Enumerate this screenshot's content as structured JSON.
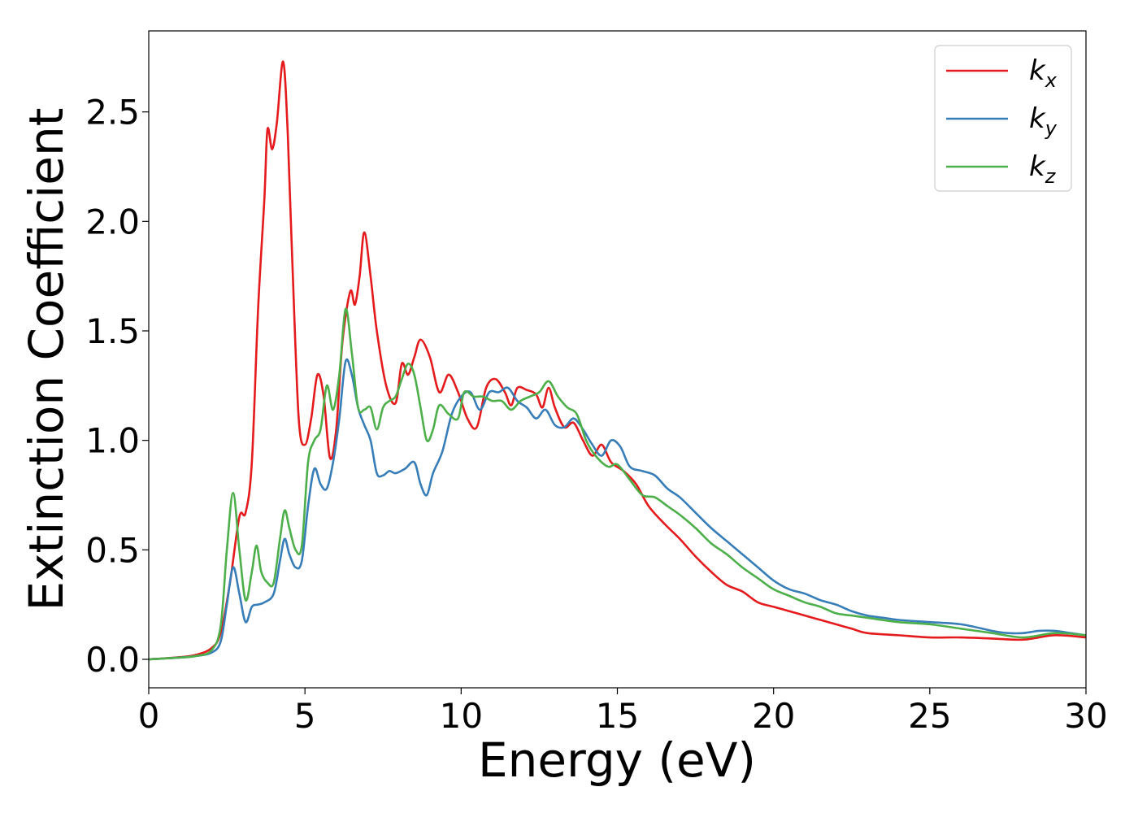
{
  "chart_data": {
    "type": "line",
    "xlabel": "Energy (eV)",
    "ylabel": "Extinction Coefficient",
    "xlim": [
      0,
      30
    ],
    "ylim": [
      -0.13,
      2.87
    ],
    "xticks": [
      0,
      5,
      10,
      15,
      20,
      25,
      30
    ],
    "yticks": [
      0.0,
      0.5,
      1.0,
      1.5,
      2.0,
      2.5
    ],
    "xtick_labels": [
      "0",
      "5",
      "10",
      "15",
      "20",
      "25",
      "30"
    ],
    "ytick_labels": [
      "0.0",
      "0.5",
      "1.0",
      "1.5",
      "2.0",
      "2.5"
    ],
    "grid": false,
    "legend_position": "top-right",
    "series": [
      {
        "name": "k_x",
        "label_main": "k",
        "label_sub": "x",
        "color": "#e41a1c",
        "points": [
          [
            0,
            0
          ],
          [
            1,
            0.01
          ],
          [
            1.5,
            0.02
          ],
          [
            2.0,
            0.05
          ],
          [
            2.3,
            0.12
          ],
          [
            2.6,
            0.35
          ],
          [
            2.9,
            0.65
          ],
          [
            3.1,
            0.67
          ],
          [
            3.3,
            0.9
          ],
          [
            3.5,
            1.6
          ],
          [
            3.7,
            2.1
          ],
          [
            3.8,
            2.42
          ],
          [
            3.95,
            2.33
          ],
          [
            4.1,
            2.45
          ],
          [
            4.3,
            2.73
          ],
          [
            4.45,
            2.4
          ],
          [
            4.6,
            1.8
          ],
          [
            4.8,
            1.1
          ],
          [
            5.0,
            0.98
          ],
          [
            5.2,
            1.1
          ],
          [
            5.4,
            1.3
          ],
          [
            5.6,
            1.2
          ],
          [
            5.8,
            0.92
          ],
          [
            6.0,
            1.05
          ],
          [
            6.2,
            1.45
          ],
          [
            6.45,
            1.68
          ],
          [
            6.6,
            1.62
          ],
          [
            6.75,
            1.75
          ],
          [
            6.9,
            1.95
          ],
          [
            7.1,
            1.75
          ],
          [
            7.3,
            1.5
          ],
          [
            7.6,
            1.25
          ],
          [
            7.9,
            1.17
          ],
          [
            8.1,
            1.35
          ],
          [
            8.3,
            1.3
          ],
          [
            8.5,
            1.38
          ],
          [
            8.7,
            1.46
          ],
          [
            9.0,
            1.38
          ],
          [
            9.3,
            1.22
          ],
          [
            9.6,
            1.3
          ],
          [
            9.9,
            1.22
          ],
          [
            10.2,
            1.1
          ],
          [
            10.5,
            1.06
          ],
          [
            10.8,
            1.24
          ],
          [
            11.1,
            1.28
          ],
          [
            11.4,
            1.22
          ],
          [
            11.6,
            1.16
          ],
          [
            11.8,
            1.24
          ],
          [
            12.1,
            1.23
          ],
          [
            12.4,
            1.21
          ],
          [
            12.6,
            1.15
          ],
          [
            12.8,
            1.24
          ],
          [
            13.0,
            1.15
          ],
          [
            13.3,
            1.06
          ],
          [
            13.6,
            1.08
          ],
          [
            13.9,
            1.0
          ],
          [
            14.2,
            0.93
          ],
          [
            14.5,
            0.98
          ],
          [
            14.8,
            0.9
          ],
          [
            15.2,
            0.86
          ],
          [
            15.6,
            0.8
          ],
          [
            16.0,
            0.7
          ],
          [
            16.5,
            0.62
          ],
          [
            17.0,
            0.55
          ],
          [
            17.5,
            0.47
          ],
          [
            18.0,
            0.4
          ],
          [
            18.5,
            0.34
          ],
          [
            19.0,
            0.31
          ],
          [
            19.5,
            0.26
          ],
          [
            20.0,
            0.24
          ],
          [
            20.5,
            0.22
          ],
          [
            21.0,
            0.2
          ],
          [
            21.5,
            0.18
          ],
          [
            22.0,
            0.16
          ],
          [
            22.5,
            0.14
          ],
          [
            23.0,
            0.12
          ],
          [
            24.0,
            0.11
          ],
          [
            25.0,
            0.1
          ],
          [
            26.0,
            0.1
          ],
          [
            27.0,
            0.095
          ],
          [
            28.0,
            0.09
          ],
          [
            29.0,
            0.11
          ],
          [
            30.0,
            0.1
          ]
        ]
      },
      {
        "name": "k_y",
        "label_main": "k",
        "label_sub": "y",
        "color": "#377eb8",
        "points": [
          [
            0,
            0
          ],
          [
            1,
            0.008
          ],
          [
            1.5,
            0.015
          ],
          [
            2.0,
            0.03
          ],
          [
            2.3,
            0.08
          ],
          [
            2.5,
            0.25
          ],
          [
            2.7,
            0.42
          ],
          [
            2.9,
            0.3
          ],
          [
            3.1,
            0.17
          ],
          [
            3.3,
            0.24
          ],
          [
            3.5,
            0.25
          ],
          [
            3.7,
            0.26
          ],
          [
            4.0,
            0.3
          ],
          [
            4.2,
            0.45
          ],
          [
            4.35,
            0.55
          ],
          [
            4.5,
            0.48
          ],
          [
            4.7,
            0.42
          ],
          [
            4.9,
            0.45
          ],
          [
            5.1,
            0.7
          ],
          [
            5.3,
            0.87
          ],
          [
            5.5,
            0.8
          ],
          [
            5.7,
            0.78
          ],
          [
            5.9,
            0.9
          ],
          [
            6.1,
            1.1
          ],
          [
            6.3,
            1.36
          ],
          [
            6.5,
            1.3
          ],
          [
            6.7,
            1.15
          ],
          [
            6.9,
            1.07
          ],
          [
            7.1,
            1.0
          ],
          [
            7.3,
            0.85
          ],
          [
            7.5,
            0.84
          ],
          [
            7.7,
            0.86
          ],
          [
            7.9,
            0.85
          ],
          [
            8.2,
            0.87
          ],
          [
            8.5,
            0.9
          ],
          [
            8.7,
            0.8
          ],
          [
            8.9,
            0.75
          ],
          [
            9.1,
            0.85
          ],
          [
            9.4,
            0.95
          ],
          [
            9.7,
            1.12
          ],
          [
            10.0,
            1.2
          ],
          [
            10.3,
            1.22
          ],
          [
            10.6,
            1.14
          ],
          [
            10.9,
            1.22
          ],
          [
            11.2,
            1.22
          ],
          [
            11.5,
            1.24
          ],
          [
            11.8,
            1.18
          ],
          [
            12.1,
            1.15
          ],
          [
            12.4,
            1.1
          ],
          [
            12.7,
            1.14
          ],
          [
            13.0,
            1.07
          ],
          [
            13.3,
            1.06
          ],
          [
            13.6,
            1.1
          ],
          [
            13.9,
            1.05
          ],
          [
            14.2,
            0.98
          ],
          [
            14.5,
            0.93
          ],
          [
            14.8,
            1.0
          ],
          [
            15.1,
            0.97
          ],
          [
            15.4,
            0.88
          ],
          [
            15.8,
            0.86
          ],
          [
            16.2,
            0.84
          ],
          [
            16.6,
            0.78
          ],
          [
            17.0,
            0.74
          ],
          [
            17.5,
            0.67
          ],
          [
            18.0,
            0.6
          ],
          [
            18.5,
            0.54
          ],
          [
            19.0,
            0.48
          ],
          [
            19.5,
            0.42
          ],
          [
            20.0,
            0.36
          ],
          [
            20.5,
            0.32
          ],
          [
            21.0,
            0.3
          ],
          [
            21.5,
            0.27
          ],
          [
            22.0,
            0.25
          ],
          [
            22.5,
            0.22
          ],
          [
            23.0,
            0.2
          ],
          [
            23.5,
            0.19
          ],
          [
            24.0,
            0.18
          ],
          [
            25.0,
            0.17
          ],
          [
            26.0,
            0.16
          ],
          [
            27.0,
            0.13
          ],
          [
            27.5,
            0.12
          ],
          [
            28.0,
            0.12
          ],
          [
            28.5,
            0.13
          ],
          [
            29.0,
            0.13
          ],
          [
            29.5,
            0.12
          ],
          [
            30.0,
            0.11
          ]
        ]
      },
      {
        "name": "k_z",
        "label_main": "k",
        "label_sub": "z",
        "color": "#4daf4a",
        "points": [
          [
            0,
            0
          ],
          [
            1,
            0.008
          ],
          [
            1.5,
            0.015
          ],
          [
            2.0,
            0.04
          ],
          [
            2.3,
            0.15
          ],
          [
            2.5,
            0.5
          ],
          [
            2.7,
            0.76
          ],
          [
            2.9,
            0.5
          ],
          [
            3.1,
            0.27
          ],
          [
            3.3,
            0.4
          ],
          [
            3.45,
            0.52
          ],
          [
            3.6,
            0.4
          ],
          [
            3.8,
            0.35
          ],
          [
            4.0,
            0.35
          ],
          [
            4.2,
            0.55
          ],
          [
            4.35,
            0.68
          ],
          [
            4.5,
            0.6
          ],
          [
            4.7,
            0.5
          ],
          [
            4.9,
            0.52
          ],
          [
            5.1,
            0.9
          ],
          [
            5.3,
            1.0
          ],
          [
            5.5,
            1.05
          ],
          [
            5.7,
            1.25
          ],
          [
            5.9,
            1.14
          ],
          [
            6.1,
            1.3
          ],
          [
            6.3,
            1.6
          ],
          [
            6.5,
            1.4
          ],
          [
            6.7,
            1.15
          ],
          [
            6.9,
            1.14
          ],
          [
            7.1,
            1.15
          ],
          [
            7.3,
            1.05
          ],
          [
            7.5,
            1.15
          ],
          [
            7.7,
            1.18
          ],
          [
            7.9,
            1.2
          ],
          [
            8.1,
            1.28
          ],
          [
            8.3,
            1.35
          ],
          [
            8.5,
            1.3
          ],
          [
            8.7,
            1.15
          ],
          [
            8.9,
            1.0
          ],
          [
            9.1,
            1.05
          ],
          [
            9.3,
            1.16
          ],
          [
            9.6,
            1.12
          ],
          [
            9.9,
            1.1
          ],
          [
            10.1,
            1.22
          ],
          [
            10.4,
            1.2
          ],
          [
            10.7,
            1.2
          ],
          [
            11.0,
            1.18
          ],
          [
            11.3,
            1.18
          ],
          [
            11.6,
            1.14
          ],
          [
            11.9,
            1.18
          ],
          [
            12.2,
            1.2
          ],
          [
            12.5,
            1.22
          ],
          [
            12.8,
            1.27
          ],
          [
            13.1,
            1.2
          ],
          [
            13.4,
            1.15
          ],
          [
            13.7,
            1.12
          ],
          [
            14.0,
            1.0
          ],
          [
            14.3,
            0.93
          ],
          [
            14.7,
            0.88
          ],
          [
            15.0,
            0.89
          ],
          [
            15.4,
            0.82
          ],
          [
            15.8,
            0.75
          ],
          [
            16.2,
            0.74
          ],
          [
            16.6,
            0.7
          ],
          [
            17.0,
            0.66
          ],
          [
            17.5,
            0.6
          ],
          [
            18.0,
            0.53
          ],
          [
            18.5,
            0.48
          ],
          [
            19.0,
            0.42
          ],
          [
            19.5,
            0.37
          ],
          [
            20.0,
            0.32
          ],
          [
            20.5,
            0.29
          ],
          [
            21.0,
            0.26
          ],
          [
            21.5,
            0.24
          ],
          [
            22.0,
            0.21
          ],
          [
            22.5,
            0.2
          ],
          [
            23.0,
            0.19
          ],
          [
            24.0,
            0.17
          ],
          [
            25.0,
            0.16
          ],
          [
            26.0,
            0.14
          ],
          [
            27.0,
            0.12
          ],
          [
            28.0,
            0.1
          ],
          [
            29.0,
            0.12
          ],
          [
            30.0,
            0.11
          ]
        ]
      }
    ]
  }
}
